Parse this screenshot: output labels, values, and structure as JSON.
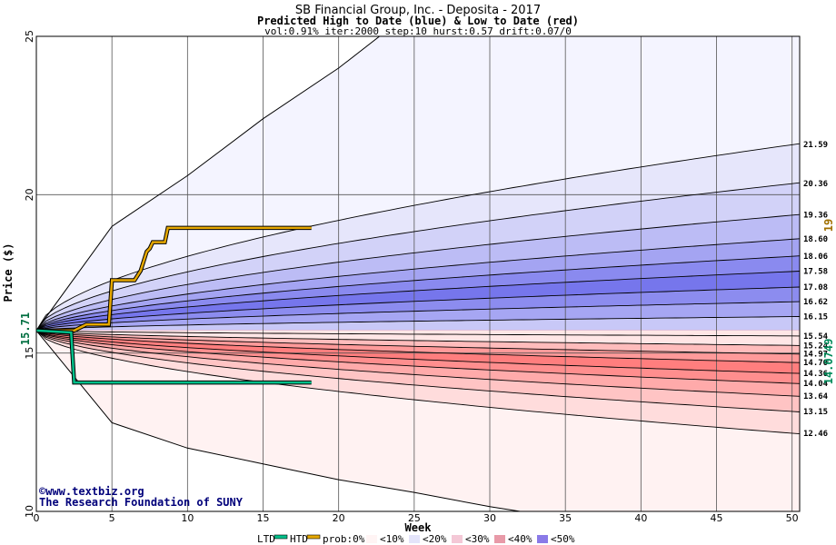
{
  "header": {
    "title": "SB Financial Group, Inc. - Deposita - 2017",
    "subtitle": "Predicted High to Date (blue) &  Low to Date (red)",
    "params": "vol:0.91% iter:2000 step:10 hurst:0.57 drift:0.07/0"
  },
  "axes": {
    "ylabel": "Price ($)",
    "xlabel": "Week",
    "current_price_label": "15.71",
    "right_high_label": "19",
    "right_low_label": "14.0749"
  },
  "credits": {
    "line1": "©www.textbiz.org",
    "line2": "The Research Foundation of SUNY"
  },
  "legend": {
    "ltd": "LTD",
    "htd": "HTD",
    "prob": "prob:0%",
    "bins": [
      "<10%",
      "<20%",
      "<30%",
      "<40%",
      "<50%"
    ]
  },
  "colors": {
    "ltd_line": "#00c08a",
    "htd_line": "#e6a800",
    "blue_bands": [
      "#f4f4ff",
      "#dcdcfa",
      "#c2c2f6",
      "#a8a8f2",
      "#8e8ef0",
      "#7a7aee"
    ],
    "red_bands": [
      "#fff2f2",
      "#ffdada",
      "#ffc2c2",
      "#ffaaaa",
      "#ff9090",
      "#ff7e7e"
    ]
  },
  "chart_data": {
    "type": "area",
    "title": "SB Financial Group, Inc. - Deposita - 2017",
    "xlabel": "Week",
    "ylabel": "Price ($)",
    "xlim": [
      0,
      50.5
    ],
    "ylim": [
      10,
      25
    ],
    "x_ticks": [
      0,
      5,
      10,
      15,
      20,
      25,
      30,
      35,
      40,
      45,
      50
    ],
    "y_ticks": [
      10,
      15,
      20,
      25
    ],
    "grid": true,
    "start_price": 15.71,
    "upper_bands_end": [
      15.54,
      16.15,
      16.62,
      17.08,
      17.58,
      18.06,
      18.6,
      19.36,
      20.36,
      21.59
    ],
    "lower_bands_end": [
      15.24,
      14.97,
      14.7,
      14.36,
      14.04,
      13.64,
      13.15,
      12.46
    ],
    "outer_high": {
      "x": [
        0,
        5,
        10,
        15,
        20,
        22.7
      ],
      "y": [
        15.71,
        19.0,
        20.6,
        22.4,
        24.0,
        25.0
      ]
    },
    "outer_low": {
      "x": [
        0,
        5,
        10,
        15,
        20,
        25,
        30,
        32
      ],
      "y": [
        15.71,
        12.8,
        12.0,
        11.5,
        11.0,
        10.6,
        10.15,
        10.0
      ]
    },
    "htd_series": {
      "x": [
        0,
        2.5,
        3.3,
        4.8,
        5.0,
        6.5,
        6.9,
        7.1,
        7.3,
        7.5,
        7.7,
        8.5,
        8.7,
        18.2
      ],
      "y": [
        15.71,
        15.71,
        15.9,
        15.9,
        17.3,
        17.3,
        17.6,
        17.9,
        18.2,
        18.3,
        18.5,
        18.5,
        18.95,
        18.95
      ]
    },
    "ltd_series": {
      "x": [
        0,
        2.3,
        2.5,
        18.2
      ],
      "y": [
        15.71,
        15.65,
        14.07,
        14.07
      ]
    }
  }
}
